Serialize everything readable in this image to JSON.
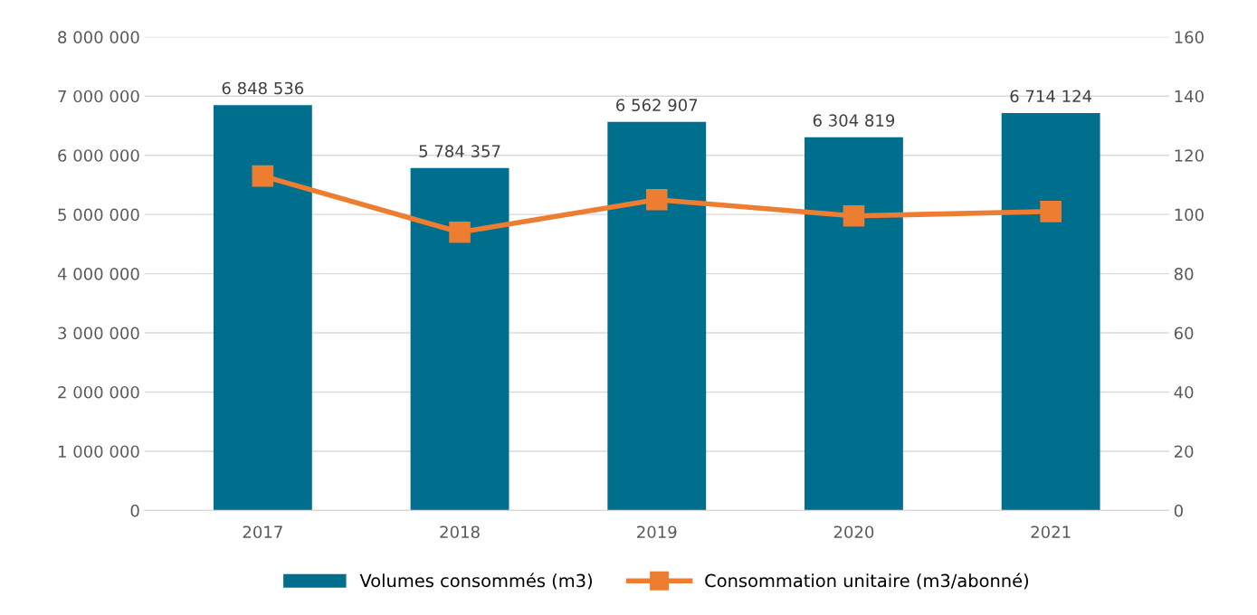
{
  "chart_data": {
    "type": "bar",
    "categories": [
      "2017",
      "2018",
      "2019",
      "2020",
      "2021"
    ],
    "series": [
      {
        "name": "Volumes consommés (m3)",
        "color": "#006f8e",
        "values": [
          6848536,
          5784357,
          6562907,
          6304819,
          6714124
        ],
        "value_labels": [
          "6 848 536",
          "5 784 357",
          "6 562 907",
          "6 304 819",
          "6 714 124"
        ]
      },
      {
        "name": "Consommation unitaire (m3/abonné)",
        "type": "line",
        "axis": "y2",
        "color": "#ed7d31",
        "values": [
          113,
          94,
          105,
          99.5,
          101
        ]
      }
    ],
    "ylim": [
      0,
      8000000
    ],
    "yticks": [
      {
        "value": 0,
        "label": "0"
      },
      {
        "value": 1000000,
        "label": "1 000 000"
      },
      {
        "value": 2000000,
        "label": "2 000 000"
      },
      {
        "value": 3000000,
        "label": "3 000 000"
      },
      {
        "value": 4000000,
        "label": "4 000 000"
      },
      {
        "value": 5000000,
        "label": "5 000 000"
      },
      {
        "value": 6000000,
        "label": "6 000 000"
      },
      {
        "value": 7000000,
        "label": "7 000 000"
      },
      {
        "value": 8000000,
        "label": "8 000 000"
      }
    ],
    "y2lim": [
      0,
      160
    ],
    "y2ticks": [
      0,
      20,
      40,
      60,
      80,
      100,
      120,
      140,
      160
    ],
    "grid": "y",
    "legend": "bottom",
    "marker": "square",
    "line_style": "solid"
  }
}
